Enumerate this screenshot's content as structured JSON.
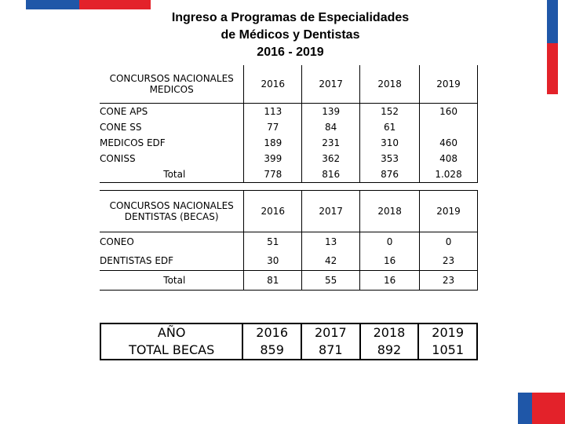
{
  "title": {
    "line1": "Ingreso a Programas de Especialidades",
    "line2": "de Médicos y Dentistas",
    "line3": "2016 - 2019"
  },
  "medicos": {
    "header_line1": "CONCURSOS NACIONALES",
    "header_line2": "MEDICOS",
    "years": [
      "2016",
      "2017",
      "2018",
      "2019"
    ],
    "rows": [
      {
        "label": "CONE APS",
        "values": [
          "113",
          "139",
          "152",
          "160"
        ]
      },
      {
        "label": "CONE SS",
        "values": [
          "77",
          "84",
          "61",
          ""
        ]
      },
      {
        "label": "MEDICOS EDF",
        "values": [
          "189",
          "231",
          "310",
          "460"
        ]
      },
      {
        "label": "CONISS",
        "values": [
          "399",
          "362",
          "353",
          "408"
        ]
      }
    ],
    "total": {
      "label": "Total",
      "values": [
        "778",
        "816",
        "876",
        "1.028"
      ]
    }
  },
  "dentistas": {
    "header_line1": "CONCURSOS NACIONALES",
    "header_line2": "DENTISTAS (BECAS)",
    "years": [
      "2016",
      "2017",
      "2018",
      "2019"
    ],
    "rows": [
      {
        "label": "CONEO",
        "values": [
          "51",
          "13",
          "0",
          "0"
        ]
      },
      {
        "label": "DENTISTAS EDF",
        "values": [
          "30",
          "42",
          "16",
          "23"
        ]
      }
    ],
    "total": {
      "label": "Total",
      "values": [
        "81",
        "55",
        "16",
        "23"
      ]
    }
  },
  "becas": {
    "line1": "AÑO",
    "line2": "TOTAL BECAS",
    "years": [
      "2016",
      "2017",
      "2018",
      "2019"
    ],
    "totals": [
      "859",
      "871",
      "892",
      "1051"
    ]
  },
  "colors": {
    "blue": "#1f57a8",
    "red": "#e3222a"
  }
}
